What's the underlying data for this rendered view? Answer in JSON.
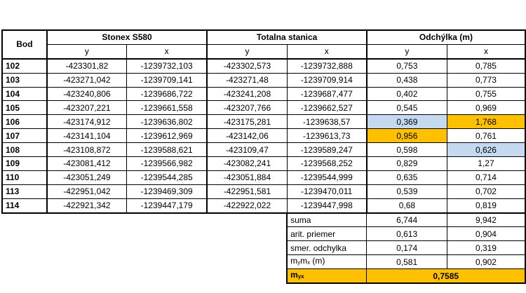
{
  "headers": {
    "bod": "Bod",
    "group1": "Stonex S580",
    "group2": "Totalna stanica",
    "group3": "Odchýlka (m)",
    "y": "y",
    "x": "x"
  },
  "rows": [
    {
      "bod": "102",
      "s_y": "-423301,82",
      "s_x": "-1239732,103",
      "t_y": "-423302,573",
      "t_x": "-1239732,888",
      "d_y": "0,753",
      "d_x": "0,785"
    },
    {
      "bod": "103",
      "s_y": "-423271,042",
      "s_x": "-1239709,141",
      "t_y": "-423271,48",
      "t_x": "-1239709,914",
      "d_y": "0,438",
      "d_x": "0,773"
    },
    {
      "bod": "104",
      "s_y": "-423240,806",
      "s_x": "-1239686,722",
      "t_y": "-423241,208",
      "t_x": "-1239687,477",
      "d_y": "0,402",
      "d_x": "0,755"
    },
    {
      "bod": "105",
      "s_y": "-423207,221",
      "s_x": "-1239661,558",
      "t_y": "-423207,766",
      "t_x": "-1239662,527",
      "d_y": "0,545",
      "d_x": "0,969"
    },
    {
      "bod": "106",
      "s_y": "-423174,912",
      "s_x": "-1239636,802",
      "t_y": "-423175,281",
      "t_x": "-1239638,57",
      "d_y": "0,369",
      "d_x": "1,768"
    },
    {
      "bod": "107",
      "s_y": "-423141,104",
      "s_x": "-1239612,969",
      "t_y": "-423142,06",
      "t_x": "-1239613,73",
      "d_y": "0,956",
      "d_x": "0,761"
    },
    {
      "bod": "108",
      "s_y": "-423108,872",
      "s_x": "-1239588,621",
      "t_y": "-423109,47",
      "t_x": "-1239589,247",
      "d_y": "0,598",
      "d_x": "0,626"
    },
    {
      "bod": "109",
      "s_y": "-423081,412",
      "s_x": "-1239566,982",
      "t_y": "-423082,241",
      "t_x": "-1239568,252",
      "d_y": "0,829",
      "d_x": "1,27"
    },
    {
      "bod": "110",
      "s_y": "-423051,249",
      "s_x": "-1239544,285",
      "t_y": "-423051,884",
      "t_x": "-1239544,999",
      "d_y": "0,635",
      "d_x": "0,714"
    },
    {
      "bod": "113",
      "s_y": "-422951,042",
      "s_x": "-1239469,309",
      "t_y": "-422951,581",
      "t_x": "-1239470,011",
      "d_y": "0,539",
      "d_x": "0,702"
    },
    {
      "bod": "114",
      "s_y": "-422921,342",
      "s_x": "-1239447,179",
      "t_y": "-422922,022",
      "t_x": "-1239447,998",
      "d_y": "0,68",
      "d_x": "0,819"
    }
  ],
  "summary": {
    "suma": {
      "label": "suma",
      "y": "6,744",
      "x": "9,942"
    },
    "priemer": {
      "label": "arit. priemer",
      "y": "0,613",
      "x": "0,904"
    },
    "odchylka": {
      "label": "smer. odchylka",
      "y": "0,174",
      "x": "0,319"
    },
    "mymx": {
      "label_m1": "m",
      "label_s1": "y",
      "label_m2": "m",
      "label_s2": "x",
      "label_unit": " (m)",
      "y": "0,581",
      "x": "0,902"
    },
    "myx": {
      "label_m": "m",
      "label_s": "yx",
      "value": "0,7585"
    }
  },
  "colors": {
    "highlight_blue": "#c5d9f1",
    "highlight_orange": "#ffc000"
  }
}
